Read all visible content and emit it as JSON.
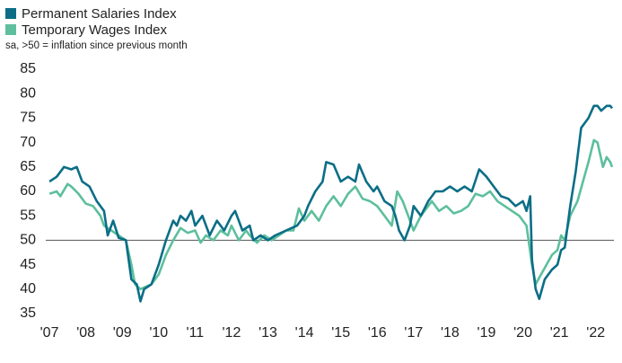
{
  "chart_data": {
    "type": "line",
    "subtitle": "sa, >50 = inflation since previous month",
    "xlim": [
      2006.9,
      2022.5
    ],
    "xticks": [
      {
        "value": 2007,
        "label": "'07"
      },
      {
        "value": 2008,
        "label": "'08"
      },
      {
        "value": 2009,
        "label": "'09"
      },
      {
        "value": 2010,
        "label": "'10"
      },
      {
        "value": 2011,
        "label": "'11"
      },
      {
        "value": 2012,
        "label": "'12"
      },
      {
        "value": 2013,
        "label": "'13"
      },
      {
        "value": 2014,
        "label": "'14"
      },
      {
        "value": 2015,
        "label": "'15"
      },
      {
        "value": 2016,
        "label": "'16"
      },
      {
        "value": 2017,
        "label": "'17"
      },
      {
        "value": 2018,
        "label": "'18"
      },
      {
        "value": 2019,
        "label": "'19"
      },
      {
        "value": 2020,
        "label": "'20"
      },
      {
        "value": 2021,
        "label": "'21"
      },
      {
        "value": 2022,
        "label": "'22"
      }
    ],
    "ylim": [
      35,
      85
    ],
    "yticks": [
      35,
      40,
      45,
      50,
      55,
      60,
      65,
      70,
      75,
      80,
      85
    ],
    "reference_line": 50,
    "series": [
      {
        "name": "Permanent Salaries Index",
        "color": "#0b6e86",
        "x": [
          2007.0,
          2007.2,
          2007.4,
          2007.6,
          2007.75,
          2007.9,
          2008.1,
          2008.3,
          2008.5,
          2008.6,
          2008.75,
          2008.9,
          2009.1,
          2009.25,
          2009.4,
          2009.5,
          2009.6,
          2009.8,
          2010.0,
          2010.2,
          2010.4,
          2010.5,
          2010.6,
          2010.75,
          2010.9,
          2011.0,
          2011.2,
          2011.4,
          2011.6,
          2011.8,
          2012.0,
          2012.1,
          2012.3,
          2012.5,
          2012.6,
          2012.8,
          2013.0,
          2013.2,
          2013.5,
          2013.8,
          2014.0,
          2014.1,
          2014.3,
          2014.5,
          2014.6,
          2014.8,
          2015.0,
          2015.2,
          2015.4,
          2015.5,
          2015.7,
          2015.9,
          2016.0,
          2016.2,
          2016.4,
          2016.5,
          2016.6,
          2016.75,
          2016.9,
          2017.0,
          2017.2,
          2017.4,
          2017.6,
          2017.8,
          2018.0,
          2018.2,
          2018.4,
          2018.6,
          2018.8,
          2019.0,
          2019.2,
          2019.4,
          2019.6,
          2019.8,
          2020.0,
          2020.1,
          2020.2,
          2020.25,
          2020.35,
          2020.45,
          2020.6,
          2020.8,
          2020.95,
          2021.05,
          2021.15,
          2021.3,
          2021.45,
          2021.6,
          2021.8,
          2021.95,
          2022.05,
          2022.15,
          2022.3,
          2022.4,
          2022.45
        ],
        "values": [
          62,
          63,
          65,
          64.5,
          65,
          62,
          61,
          58,
          56,
          51,
          54,
          50.5,
          50,
          42,
          41,
          37.5,
          40,
          41,
          45,
          50,
          54,
          53,
          55,
          54,
          56,
          53,
          55,
          51,
          54,
          52,
          55,
          56,
          52,
          53,
          50,
          51,
          50,
          51,
          52,
          53,
          55,
          57,
          60,
          62,
          66,
          65.5,
          62,
          63,
          62,
          65.5,
          62,
          60,
          61,
          58,
          57,
          55,
          52,
          50,
          53,
          57,
          55,
          58,
          60,
          60,
          61,
          60,
          61,
          60,
          64.5,
          63,
          61,
          59,
          58.5,
          57,
          58,
          56,
          59,
          46,
          40,
          38,
          42,
          44,
          45,
          48,
          48.5,
          57,
          64,
          73,
          75,
          77.5,
          77.5,
          76.5,
          77.5,
          77.5,
          77
        ]
      },
      {
        "name": "Temporary Wages Index",
        "color": "#5dbf9d",
        "x": [
          2007.0,
          2007.2,
          2007.3,
          2007.5,
          2007.6,
          2007.8,
          2008.0,
          2008.2,
          2008.4,
          2008.5,
          2008.7,
          2008.9,
          2009.1,
          2009.25,
          2009.35,
          2009.5,
          2009.65,
          2009.8,
          2010.0,
          2010.2,
          2010.4,
          2010.6,
          2010.8,
          2011.0,
          2011.15,
          2011.3,
          2011.5,
          2011.7,
          2011.9,
          2012.0,
          2012.2,
          2012.4,
          2012.5,
          2012.7,
          2012.9,
          2013.1,
          2013.3,
          2013.5,
          2013.7,
          2013.85,
          2014.0,
          2014.2,
          2014.4,
          2014.6,
          2014.8,
          2015.0,
          2015.2,
          2015.4,
          2015.6,
          2015.8,
          2016.0,
          2016.2,
          2016.4,
          2016.55,
          2016.7,
          2016.9,
          2017.0,
          2017.2,
          2017.4,
          2017.5,
          2017.7,
          2017.9,
          2018.1,
          2018.3,
          2018.5,
          2018.7,
          2018.9,
          2019.1,
          2019.3,
          2019.5,
          2019.7,
          2019.9,
          2020.1,
          2020.25,
          2020.35,
          2020.5,
          2020.65,
          2020.8,
          2020.95,
          2021.05,
          2021.15,
          2021.3,
          2021.5,
          2021.65,
          2021.8,
          2021.95,
          2022.05,
          2022.2,
          2022.3,
          2022.4,
          2022.45
        ],
        "values": [
          59.5,
          60,
          59,
          61.5,
          61,
          59.5,
          57.5,
          57,
          55,
          53,
          52,
          51,
          50,
          45,
          41,
          40,
          40.5,
          41,
          43,
          47,
          50,
          52.5,
          51.5,
          52,
          49.5,
          51,
          50,
          52,
          51,
          53,
          50,
          52,
          51,
          49.5,
          51,
          50,
          51,
          52,
          52,
          56.5,
          54,
          56,
          54,
          57,
          59,
          57,
          59.5,
          61,
          58.5,
          58,
          57,
          55,
          53,
          60,
          58,
          54,
          52,
          55,
          57,
          58,
          56,
          57,
          55.5,
          56,
          57,
          59.5,
          59,
          60,
          58,
          57,
          56,
          55,
          53,
          45,
          41,
          43,
          45,
          47,
          48,
          51,
          50,
          55,
          58,
          62,
          66,
          70.5,
          70,
          65,
          67,
          66,
          65
        ]
      }
    ]
  }
}
